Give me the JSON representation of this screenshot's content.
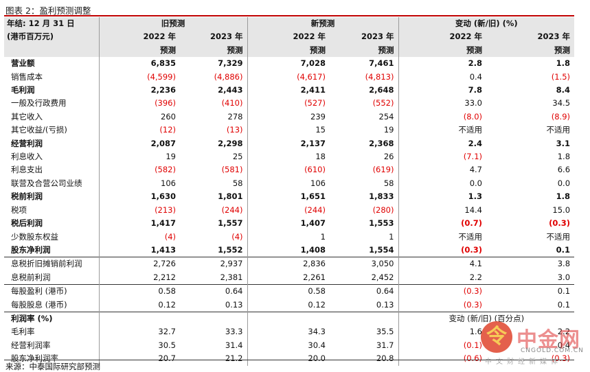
{
  "title": "图表 2：盈利预测调整",
  "source": "来源：中泰国际研究部预测",
  "colors": {
    "accent_line": "#c00000",
    "negative": "#e00000",
    "header_bg": "#e6e6e6"
  },
  "header": {
    "year_end": "年结: 12 月 31 日",
    "unit": "(港币百万元)",
    "old": "旧预测",
    "new": "新预测",
    "change": "变动 (新/旧) (%)",
    "y2022": "2022 年",
    "y2023": "2023 年",
    "forecast": "预测"
  },
  "rows": [
    {
      "label": "营业额",
      "bold": true,
      "values": [
        "6,835",
        "7,329",
        "7,028",
        "7,461",
        "2.8",
        "1.8"
      ]
    },
    {
      "label": "销售成本",
      "values": [
        "(4,599)",
        "(4,886)",
        "(4,617)",
        "(4,813)",
        "0.4",
        "(1.5)"
      ]
    },
    {
      "label": "毛利润",
      "bold": true,
      "values": [
        "2,236",
        "2,443",
        "2,411",
        "2,648",
        "7.8",
        "8.4"
      ]
    },
    {
      "label": "一般及行政费用",
      "values": [
        "(396)",
        "(410)",
        "(527)",
        "(552)",
        "33.0",
        "34.5"
      ]
    },
    {
      "label": "其它收入",
      "values": [
        "260",
        "278",
        "239",
        "254",
        "(8.0)",
        "(8.9)"
      ]
    },
    {
      "label": "其它收益/(亏损)",
      "values": [
        "(12)",
        "(13)",
        "15",
        "19",
        "不适用",
        "不适用"
      ]
    },
    {
      "label": "经营利润",
      "bold": true,
      "values": [
        "2,087",
        "2,298",
        "2,137",
        "2,368",
        "2.4",
        "3.1"
      ]
    },
    {
      "label": "利息收入",
      "values": [
        "19",
        "25",
        "18",
        "26",
        "(7.1)",
        "1.8"
      ]
    },
    {
      "label": "利息支出",
      "values": [
        "(582)",
        "(581)",
        "(610)",
        "(619)",
        "4.7",
        "6.6"
      ]
    },
    {
      "label": "联营及合营公司业绩",
      "values": [
        "106",
        "58",
        "106",
        "58",
        "0.0",
        "0.0"
      ]
    },
    {
      "label": "税前利润",
      "bold": true,
      "values": [
        "1,630",
        "1,801",
        "1,651",
        "1,833",
        "1.3",
        "1.8"
      ]
    },
    {
      "label": "税项",
      "values": [
        "(213)",
        "(244)",
        "(244)",
        "(280)",
        "14.4",
        "15.0"
      ]
    },
    {
      "label": "税后利润",
      "bold": true,
      "values": [
        "1,417",
        "1,557",
        "1,407",
        "1,553",
        "(0.7)",
        "(0.3)"
      ]
    },
    {
      "label": "少数股东权益",
      "values": [
        "(4)",
        "(4)",
        "1",
        "1",
        "不适用",
        "不适用"
      ]
    },
    {
      "label": "股东净利润",
      "bold": true,
      "values": [
        "1,413",
        "1,552",
        "1,408",
        "1,554",
        "(0.3)",
        "0.1"
      ]
    },
    {
      "label": "息税折旧摊销前利润",
      "sep": true,
      "values": [
        "2,726",
        "2,937",
        "2,836",
        "3,050",
        "4.1",
        "3.8"
      ]
    },
    {
      "label": "息税前利润",
      "values": [
        "2,212",
        "2,381",
        "2,261",
        "2,452",
        "2.2",
        "3.0"
      ]
    },
    {
      "label": "每股盈利 (港币)",
      "sep": true,
      "values": [
        "0.58",
        "0.64",
        "0.58",
        "0.64",
        "(0.3)",
        "0.1"
      ]
    },
    {
      "label": "每股股息 (港币)",
      "values": [
        "0.12",
        "0.13",
        "0.12",
        "0.13",
        "(0.3)",
        "0.1"
      ]
    }
  ],
  "margin_section": {
    "label": "利润率 (%)",
    "change_label": "变动 (新/旧) (百分点)",
    "rows": [
      {
        "label": "毛利率",
        "values": [
          "32.7",
          "33.3",
          "34.3",
          "35.5",
          "1.6",
          "2.2"
        ]
      },
      {
        "label": "经营利润率",
        "values": [
          "30.5",
          "31.4",
          "30.4",
          "31.7",
          "(0.1)",
          "0.4"
        ]
      },
      {
        "label": "股东净利润率",
        "values": [
          "20.7",
          "21.2",
          "20.0",
          "20.8",
          "(0.6)",
          "(0.3)"
        ]
      }
    ]
  },
  "watermark": {
    "symbol": "令",
    "brand": "中金网",
    "url": "CNGOLD.COM.CN",
    "tagline": "中文财经新媒体"
  }
}
